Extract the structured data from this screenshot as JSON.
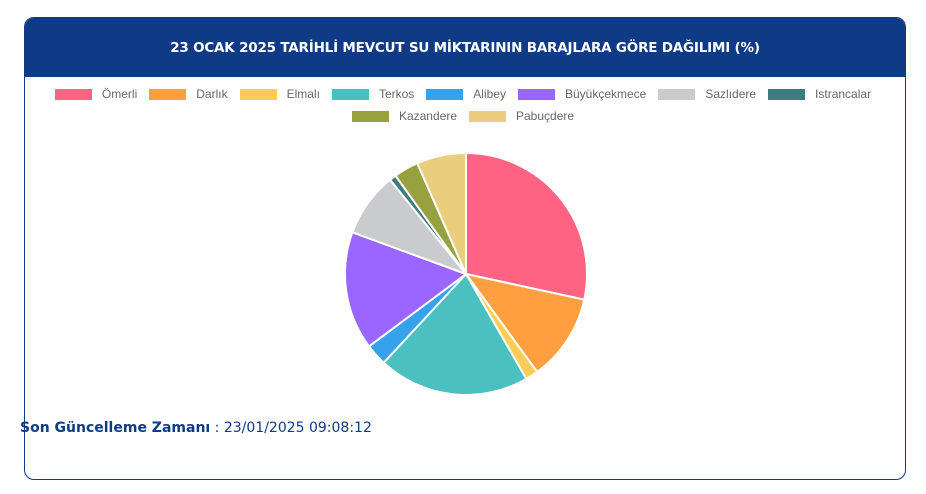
{
  "header": {
    "title": "23 OCAK 2025 TARİHLİ MEVCUT SU MİKTARININ BARAJLARA GÖRE DAĞILIMI (%)"
  },
  "legend": [
    {
      "label": "Ömerli",
      "color": "#ff6384"
    },
    {
      "label": "Darlık",
      "color": "#ff9f40"
    },
    {
      "label": "Elmalı",
      "color": "#ffcd56"
    },
    {
      "label": "Terkos",
      "color": "#4bc0c0"
    },
    {
      "label": "Alibey",
      "color": "#36a2eb"
    },
    {
      "label": "Büyükçekmece",
      "color": "#9966ff"
    },
    {
      "label": "Sazlıdere",
      "color": "#c9cbcf"
    },
    {
      "label": "Istrancalar",
      "color": "#3e7c80"
    },
    {
      "label": "Kazandere",
      "color": "#97a13d"
    },
    {
      "label": "Pabuçdere",
      "color": "#ebcd7e"
    }
  ],
  "footer": {
    "label": "Son Güncelleme Zamanı",
    "separator": " : ",
    "value": "23/01/2025 09:08:12"
  },
  "chart_data": {
    "type": "pie",
    "title": "23 OCAK 2025 TARİHLİ MEVCUT SU MİKTARININ BARAJLARA GÖRE DAĞILIMI (%)",
    "categories": [
      "Ömerli",
      "Darlık",
      "Elmalı",
      "Terkos",
      "Alibey",
      "Büyükçekmece",
      "Sazlıdere",
      "Istrancalar",
      "Kazandere",
      "Pabuçdere"
    ],
    "values": [
      28.4,
      11.6,
      1.7,
      20.2,
      2.9,
      15.8,
      8.6,
      0.9,
      3.3,
      6.6
    ],
    "colors": [
      "#ff6384",
      "#ff9f40",
      "#ffcd56",
      "#4bc0c0",
      "#36a2eb",
      "#9966ff",
      "#c9cbcf",
      "#3e7c80",
      "#97a13d",
      "#ebcd7e"
    ],
    "legend_position": "top",
    "start_angle": "top, clockwise"
  }
}
